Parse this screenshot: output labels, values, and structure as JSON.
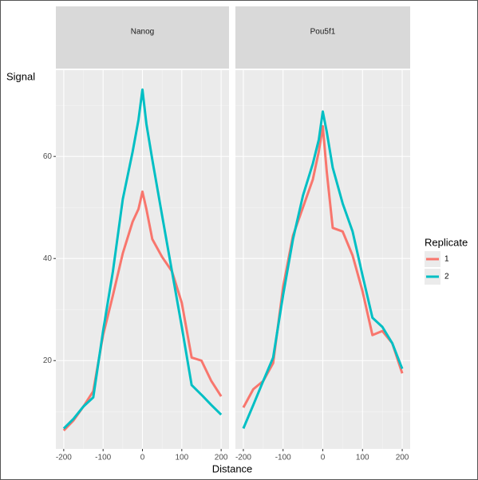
{
  "y_label": "Signal",
  "x_label": "Distance",
  "legend_title": "Replicate",
  "chart_data": [
    {
      "type": "line",
      "title": "Nanog",
      "x": [
        -200,
        -175,
        -150,
        -125,
        -100,
        -75,
        -50,
        -25,
        -10,
        0,
        10,
        25,
        50,
        75,
        100,
        125,
        150,
        175,
        200
      ],
      "series": [
        {
          "name": "1",
          "color": "#F8766D",
          "values": [
            6.3,
            8.3,
            11,
            14,
            25,
            32.8,
            41,
            47.2,
            49.7,
            53.1,
            49.7,
            43.8,
            40.3,
            37.5,
            31.3,
            20.6,
            20,
            16,
            13
          ]
        },
        {
          "name": "2",
          "color": "#00BFC4",
          "values": [
            6.7,
            8.6,
            11,
            12.8,
            25.8,
            37.5,
            51.6,
            60.9,
            67.2,
            73.1,
            66.4,
            59.4,
            48.4,
            37.5,
            26.6,
            15.2,
            13.3,
            11.3,
            9.4
          ]
        }
      ],
      "xlim": [
        -220,
        220
      ],
      "ylim": [
        2.7,
        76.9
      ],
      "xticks": [
        -200,
        -100,
        0,
        100,
        200
      ],
      "yticks": [
        20,
        40,
        60
      ],
      "xminor": [
        -150,
        -50,
        50,
        150
      ],
      "yminor": [
        10,
        30,
        50,
        70
      ],
      "grid": true
    },
    {
      "type": "line",
      "title": "Pou5f1",
      "x": [
        -200,
        -175,
        -150,
        -125,
        -100,
        -75,
        -50,
        -25,
        -10,
        0,
        10,
        25,
        50,
        75,
        100,
        125,
        150,
        175,
        200
      ],
      "series": [
        {
          "name": "1",
          "color": "#F8766D",
          "values": [
            10.8,
            14.4,
            16,
            19.5,
            34.4,
            44.5,
            50,
            55.5,
            61,
            65.9,
            57,
            46,
            45.3,
            40.6,
            33.6,
            25,
            25.8,
            23.4,
            17.5
          ]
        },
        {
          "name": "2",
          "color": "#00BFC4",
          "values": [
            6.7,
            11.3,
            16,
            20.6,
            32.8,
            43.8,
            52.3,
            58.6,
            63.3,
            68.8,
            64.8,
            57.8,
            50.8,
            45.3,
            36.7,
            28.4,
            26.6,
            23.4,
            18.4
          ]
        }
      ],
      "xlim": [
        -220,
        220
      ],
      "ylim": [
        2.7,
        76.9
      ],
      "xticks": [
        -200,
        -100,
        0,
        100,
        200
      ],
      "yticks": [
        20,
        40,
        60
      ],
      "xminor": [
        -150,
        -50,
        50,
        150
      ],
      "yminor": [
        10,
        30,
        50,
        70
      ],
      "grid": true
    }
  ]
}
